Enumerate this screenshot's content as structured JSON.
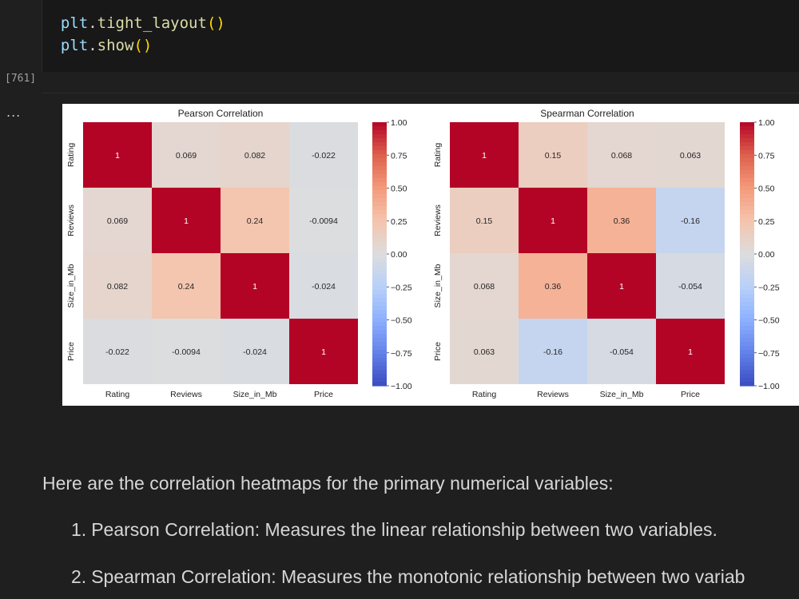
{
  "code": {
    "lines": [
      {
        "obj": "plt",
        "dot": ".",
        "fn": "tight_layout",
        "parens": "()"
      },
      {
        "obj": "plt",
        "dot": ".",
        "fn": "show",
        "parens": "()"
      }
    ],
    "execution_count": "[761]"
  },
  "output": {
    "menu_label": "..."
  },
  "chart_data": [
    {
      "type": "heatmap",
      "title": "Pearson Correlation",
      "x_labels": [
        "Rating",
        "Reviews",
        "Size_in_Mb",
        "Price"
      ],
      "y_labels": [
        "Rating",
        "Reviews",
        "Size_in_Mb",
        "Price"
      ],
      "values": [
        [
          1,
          0.069,
          0.082,
          -0.022
        ],
        [
          0.069,
          1,
          0.24,
          -0.0094
        ],
        [
          0.082,
          0.24,
          1,
          -0.024
        ],
        [
          -0.022,
          -0.0094,
          -0.024,
          1
        ]
      ],
      "cell_labels": [
        [
          "1",
          "0.069",
          "0.082",
          "-0.022"
        ],
        [
          "0.069",
          "1",
          "0.24",
          "-0.0094"
        ],
        [
          "0.082",
          "0.24",
          "1",
          "-0.024"
        ],
        [
          "-0.022",
          "-0.0094",
          "-0.024",
          "1"
        ]
      ],
      "colormap": "coolwarm",
      "vmin": -1,
      "vmax": 1,
      "colorbar_ticks": [
        "1.00",
        "0.75",
        "0.50",
        "0.25",
        "0.00",
        "−0.25",
        "−0.50",
        "−0.75",
        "−1.00"
      ]
    },
    {
      "type": "heatmap",
      "title": "Spearman Correlation",
      "x_labels": [
        "Rating",
        "Reviews",
        "Size_in_Mb",
        "Price"
      ],
      "y_labels": [
        "Rating",
        "Reviews",
        "Size_in_Mb",
        "Price"
      ],
      "values": [
        [
          1,
          0.15,
          0.068,
          0.063
        ],
        [
          0.15,
          1,
          0.36,
          -0.16
        ],
        [
          0.068,
          0.36,
          1,
          -0.054
        ],
        [
          0.063,
          -0.16,
          -0.054,
          1
        ]
      ],
      "cell_labels": [
        [
          "1",
          "0.15",
          "0.068",
          "0.063"
        ],
        [
          "0.15",
          "1",
          "0.36",
          "-0.16"
        ],
        [
          "0.068",
          "0.36",
          "1",
          "-0.054"
        ],
        [
          "0.063",
          "-0.16",
          "-0.054",
          "1"
        ]
      ],
      "colormap": "coolwarm",
      "vmin": -1,
      "vmax": 1,
      "colorbar_ticks": [
        "1.00",
        "0.75",
        "0.50",
        "0.25",
        "0.00",
        "−0.25",
        "−0.50",
        "−0.75",
        "−1.00"
      ]
    }
  ],
  "markdown": {
    "intro": "Here are the correlation heatmaps for the primary numerical variables:",
    "items": [
      {
        "num": "1.",
        "text": "Pearson Correlation: Measures the linear relationship between two variables."
      },
      {
        "num": "2.",
        "text": "Spearman Correlation: Measures the monotonic relationship between two variab"
      }
    ]
  },
  "colors": {
    "background": "#1f1f1f",
    "code_background": "#181818",
    "text": "#d6d6d6"
  }
}
